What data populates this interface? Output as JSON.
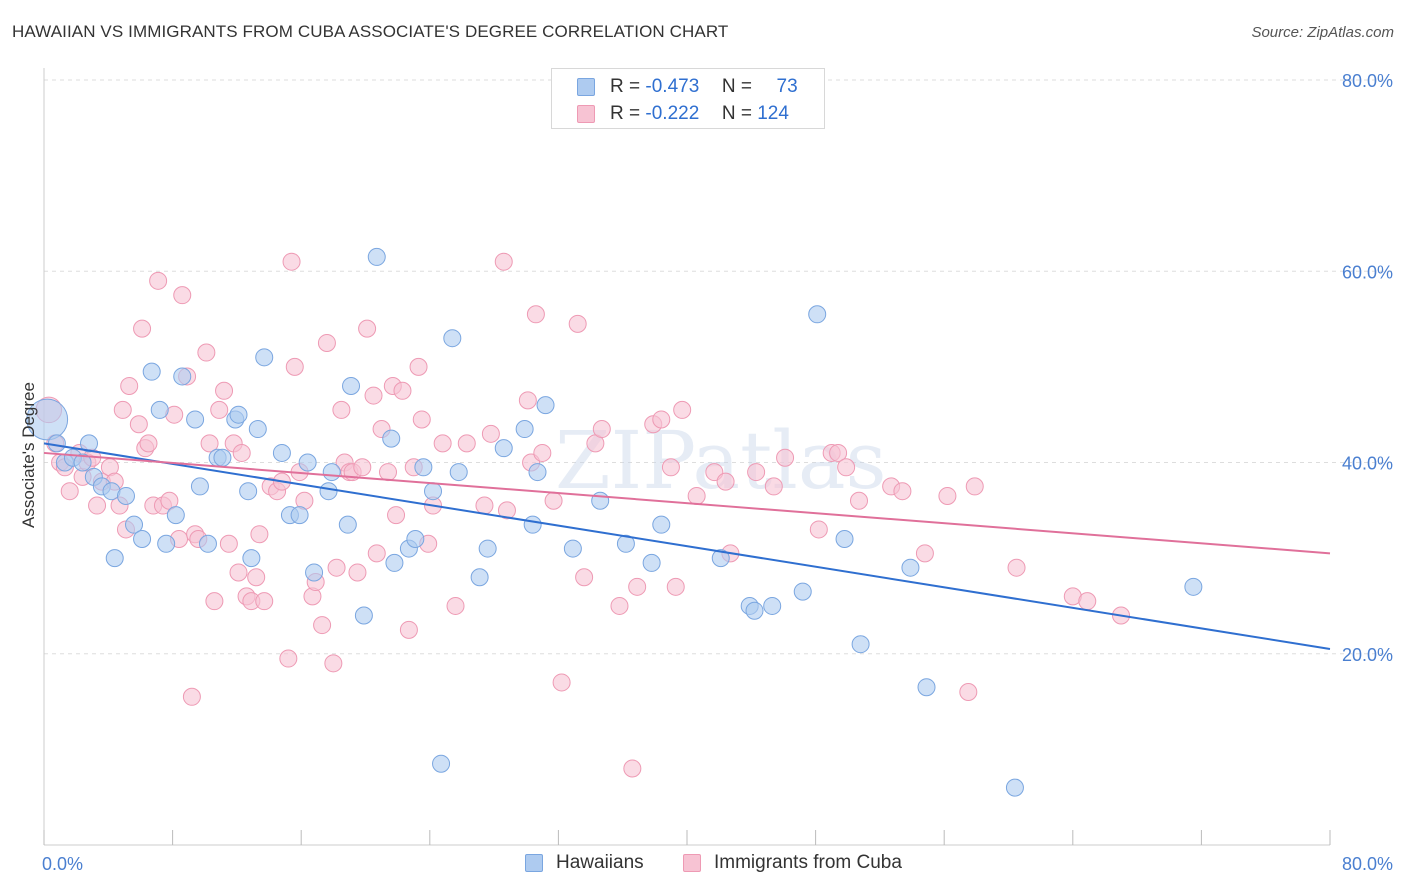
{
  "header": {
    "title": "HAWAIIAN VS IMMIGRANTS FROM CUBA ASSOCIATE'S DEGREE CORRELATION CHART",
    "source": "Source: ZipAtlas.com"
  },
  "watermark": "ZIPatlas",
  "legend": {
    "rows": [
      {
        "r_label": "R =",
        "r_value": "-0.473",
        "n_label": "N =",
        "n_value": "73"
      },
      {
        "r_label": "R =",
        "r_value": "-0.222",
        "n_label": "N =",
        "n_value": "124"
      }
    ]
  },
  "bottom_legend": {
    "series1": "Hawaiians",
    "series2": "Immigrants from Cuba"
  },
  "colors": {
    "blue_fill": "#aecbf0",
    "blue_stroke": "#7aa6e0",
    "blue_line": "#2f6fd0",
    "pink_fill": "#f7c3d3",
    "pink_stroke": "#ee9ab4",
    "pink_line": "#e0709a",
    "axis_text": "#4a7fd0"
  },
  "chart_data": {
    "type": "scatter",
    "title": "HAWAIIAN VS IMMIGRANTS FROM CUBA ASSOCIATE'S DEGREE CORRELATION CHART",
    "ylabel": "Associate's Degree",
    "xlabel": "",
    "xlim": [
      0,
      80
    ],
    "ylim": [
      0,
      80
    ],
    "x_tick_labels": [
      "0.0%",
      "80.0%"
    ],
    "y_tick_labels": [
      "20.0%",
      "40.0%",
      "60.0%",
      "80.0%"
    ],
    "y_ticks": [
      20,
      40,
      60,
      80
    ],
    "grid": "horizontal dashed",
    "legend_position": "top-center",
    "series": [
      {
        "name": "Hawaiians",
        "color": "blue",
        "R": -0.473,
        "N": 73,
        "trend": {
          "x": [
            0,
            80
          ],
          "y": [
            42.0,
            20.5
          ]
        },
        "points": [
          [
            0.2,
            44.5,
            2.4
          ],
          [
            0.8,
            42.0,
            1
          ],
          [
            1.3,
            40.0,
            1
          ],
          [
            1.8,
            40.5,
            1
          ],
          [
            2.4,
            40.0,
            1
          ],
          [
            2.8,
            42.0,
            1
          ],
          [
            3.1,
            38.5,
            1
          ],
          [
            3.6,
            37.5,
            1
          ],
          [
            4.2,
            37.0,
            1
          ],
          [
            4.4,
            30.0,
            1
          ],
          [
            5.1,
            36.5,
            1
          ],
          [
            5.6,
            33.5,
            1
          ],
          [
            6.1,
            32.0,
            1
          ],
          [
            6.7,
            49.5,
            1
          ],
          [
            7.2,
            45.5,
            1
          ],
          [
            7.6,
            31.5,
            1
          ],
          [
            8.2,
            34.5,
            1
          ],
          [
            8.6,
            49.0,
            1
          ],
          [
            9.4,
            44.5,
            1
          ],
          [
            9.7,
            37.5,
            1
          ],
          [
            10.2,
            31.5,
            1
          ],
          [
            10.8,
            40.5,
            1
          ],
          [
            11.1,
            40.5,
            1
          ],
          [
            11.9,
            44.5,
            1
          ],
          [
            12.1,
            45.0,
            1
          ],
          [
            12.7,
            37.0,
            1
          ],
          [
            12.9,
            30.0,
            1
          ],
          [
            13.3,
            43.5,
            1
          ],
          [
            13.7,
            51.0,
            1
          ],
          [
            14.8,
            41.0,
            1
          ],
          [
            15.3,
            34.5,
            1
          ],
          [
            15.9,
            34.5,
            1
          ],
          [
            16.4,
            40.0,
            1
          ],
          [
            16.8,
            28.5,
            1
          ],
          [
            17.7,
            37.0,
            1
          ],
          [
            17.9,
            39.0,
            1
          ],
          [
            18.9,
            33.5,
            1
          ],
          [
            19.1,
            48.0,
            1
          ],
          [
            19.9,
            24.0,
            1
          ],
          [
            20.7,
            61.5,
            1
          ],
          [
            21.6,
            42.5,
            1
          ],
          [
            21.8,
            29.5,
            1
          ],
          [
            22.7,
            31.0,
            1
          ],
          [
            23.1,
            32.0,
            1
          ],
          [
            23.6,
            39.5,
            1
          ],
          [
            24.2,
            37.0,
            1
          ],
          [
            24.7,
            8.5,
            1
          ],
          [
            25.4,
            53.0,
            1
          ],
          [
            25.8,
            39.0,
            1
          ],
          [
            27.1,
            28.0,
            1
          ],
          [
            27.6,
            31.0,
            1
          ],
          [
            28.6,
            41.5,
            1
          ],
          [
            29.9,
            43.5,
            1
          ],
          [
            30.4,
            33.5,
            1
          ],
          [
            30.7,
            39.0,
            1
          ],
          [
            31.2,
            46.0,
            1
          ],
          [
            32.9,
            31.0,
            1
          ],
          [
            34.6,
            36.0,
            1
          ],
          [
            36.2,
            31.5,
            1
          ],
          [
            37.8,
            29.5,
            1
          ],
          [
            38.4,
            33.5,
            1
          ],
          [
            42.1,
            30.0,
            1
          ],
          [
            43.9,
            25.0,
            1
          ],
          [
            44.2,
            24.5,
            1
          ],
          [
            45.3,
            25.0,
            1
          ],
          [
            47.2,
            26.5,
            1
          ],
          [
            48.1,
            55.5,
            1
          ],
          [
            49.8,
            32.0,
            1
          ],
          [
            50.8,
            21.0,
            1
          ],
          [
            53.9,
            29.0,
            1
          ],
          [
            54.9,
            16.5,
            1
          ],
          [
            60.4,
            6.0,
            1
          ],
          [
            71.5,
            27.0,
            1
          ]
        ]
      },
      {
        "name": "Immigrants from Cuba",
        "color": "pink",
        "R": -0.222,
        "N": 124,
        "trend": {
          "x": [
            0,
            80
          ],
          "y": [
            41.0,
            30.5
          ]
        },
        "points": [
          [
            0.3,
            45.5,
            1.5
          ],
          [
            0.7,
            42.0,
            1
          ],
          [
            1.0,
            40.0,
            1
          ],
          [
            1.3,
            39.5,
            1
          ],
          [
            1.6,
            37.0,
            1
          ],
          [
            2.2,
            41.0,
            1
          ],
          [
            2.4,
            38.5,
            1
          ],
          [
            2.7,
            40.0,
            1
          ],
          [
            3.0,
            40.5,
            1
          ],
          [
            3.3,
            35.5,
            1
          ],
          [
            3.6,
            38.0,
            1
          ],
          [
            4.1,
            39.5,
            1
          ],
          [
            4.4,
            38.0,
            1
          ],
          [
            4.7,
            35.5,
            1
          ],
          [
            4.9,
            45.5,
            1
          ],
          [
            5.1,
            33.0,
            1
          ],
          [
            5.3,
            48.0,
            1
          ],
          [
            5.9,
            44.0,
            1
          ],
          [
            6.1,
            54.0,
            1
          ],
          [
            6.3,
            41.5,
            1
          ],
          [
            6.5,
            42.0,
            1
          ],
          [
            6.8,
            35.5,
            1
          ],
          [
            7.1,
            59.0,
            1
          ],
          [
            7.4,
            35.5,
            1
          ],
          [
            7.8,
            36.0,
            1
          ],
          [
            8.1,
            45.0,
            1
          ],
          [
            8.4,
            32.0,
            1
          ],
          [
            8.6,
            57.5,
            1
          ],
          [
            8.9,
            49.0,
            1
          ],
          [
            9.2,
            15.5,
            1
          ],
          [
            9.4,
            32.5,
            1
          ],
          [
            9.6,
            32.0,
            1
          ],
          [
            10.1,
            51.5,
            1
          ],
          [
            10.3,
            42.0,
            1
          ],
          [
            10.6,
            25.5,
            1
          ],
          [
            10.9,
            45.5,
            1
          ],
          [
            11.2,
            47.5,
            1
          ],
          [
            11.5,
            31.5,
            1
          ],
          [
            11.8,
            42.0,
            1
          ],
          [
            12.1,
            28.5,
            1
          ],
          [
            12.3,
            41.0,
            1
          ],
          [
            12.6,
            26.0,
            1
          ],
          [
            12.9,
            25.5,
            1
          ],
          [
            13.2,
            28.0,
            1
          ],
          [
            13.4,
            32.5,
            1
          ],
          [
            13.7,
            25.5,
            1
          ],
          [
            14.1,
            37.5,
            1
          ],
          [
            14.5,
            37.0,
            1
          ],
          [
            14.8,
            38.0,
            1
          ],
          [
            15.2,
            19.5,
            1
          ],
          [
            15.4,
            61.0,
            1
          ],
          [
            15.6,
            50.0,
            1
          ],
          [
            15.9,
            39.0,
            1
          ],
          [
            16.2,
            36.0,
            1
          ],
          [
            16.7,
            26.0,
            1
          ],
          [
            16.9,
            27.5,
            1
          ],
          [
            17.3,
            23.0,
            1
          ],
          [
            17.6,
            52.5,
            1
          ],
          [
            18.0,
            19.0,
            1
          ],
          [
            18.2,
            29.0,
            1
          ],
          [
            18.5,
            45.5,
            1
          ],
          [
            18.7,
            40.0,
            1
          ],
          [
            19.0,
            39.0,
            1
          ],
          [
            19.2,
            39.0,
            1
          ],
          [
            19.5,
            28.5,
            1
          ],
          [
            19.8,
            39.5,
            1
          ],
          [
            20.1,
            54.0,
            1
          ],
          [
            20.5,
            47.0,
            1
          ],
          [
            20.7,
            30.5,
            1
          ],
          [
            21.0,
            43.5,
            1
          ],
          [
            21.4,
            39.0,
            1
          ],
          [
            21.7,
            48.0,
            1
          ],
          [
            21.9,
            34.5,
            1
          ],
          [
            22.3,
            47.5,
            1
          ],
          [
            22.7,
            22.5,
            1
          ],
          [
            23.0,
            39.5,
            1
          ],
          [
            23.3,
            50.0,
            1
          ],
          [
            23.5,
            44.5,
            1
          ],
          [
            23.9,
            31.5,
            1
          ],
          [
            24.2,
            35.5,
            1
          ],
          [
            24.8,
            42.0,
            1
          ],
          [
            25.6,
            25.0,
            1
          ],
          [
            26.3,
            42.0,
            1
          ],
          [
            27.4,
            35.5,
            1
          ],
          [
            27.8,
            43.0,
            1
          ],
          [
            28.6,
            61.0,
            1
          ],
          [
            28.8,
            35.0,
            1
          ],
          [
            30.1,
            46.5,
            1
          ],
          [
            30.3,
            40.0,
            1
          ],
          [
            30.6,
            55.5,
            1
          ],
          [
            31.0,
            41.0,
            1
          ],
          [
            31.7,
            36.0,
            1
          ],
          [
            32.2,
            17.0,
            1
          ],
          [
            33.2,
            54.5,
            1
          ],
          [
            33.6,
            28.0,
            1
          ],
          [
            34.3,
            42.0,
            1
          ],
          [
            34.7,
            43.5,
            1
          ],
          [
            35.8,
            25.0,
            1
          ],
          [
            36.6,
            8.0,
            1
          ],
          [
            36.9,
            27.0,
            1
          ],
          [
            37.9,
            44.0,
            1
          ],
          [
            38.4,
            44.5,
            1
          ],
          [
            39.0,
            39.5,
            1
          ],
          [
            39.3,
            27.0,
            1
          ],
          [
            39.7,
            45.5,
            1
          ],
          [
            40.6,
            36.5,
            1
          ],
          [
            41.7,
            39.0,
            1
          ],
          [
            42.4,
            38.0,
            1
          ],
          [
            42.7,
            30.5,
            1
          ],
          [
            44.3,
            39.0,
            1
          ],
          [
            45.4,
            37.5,
            1
          ],
          [
            46.1,
            40.5,
            1
          ],
          [
            48.2,
            33.0,
            1
          ],
          [
            49.0,
            41.0,
            1
          ],
          [
            49.4,
            41.0,
            1
          ],
          [
            49.9,
            39.5,
            1
          ],
          [
            50.7,
            36.0,
            1
          ],
          [
            52.7,
            37.5,
            1
          ],
          [
            53.4,
            37.0,
            1
          ],
          [
            54.8,
            30.5,
            1
          ],
          [
            56.2,
            36.5,
            1
          ],
          [
            57.5,
            16.0,
            1
          ],
          [
            57.9,
            37.5,
            1
          ],
          [
            60.5,
            29.0,
            1
          ],
          [
            64.0,
            26.0,
            1
          ],
          [
            64.9,
            25.5,
            1
          ],
          [
            67.0,
            24.0,
            1
          ]
        ]
      }
    ]
  }
}
